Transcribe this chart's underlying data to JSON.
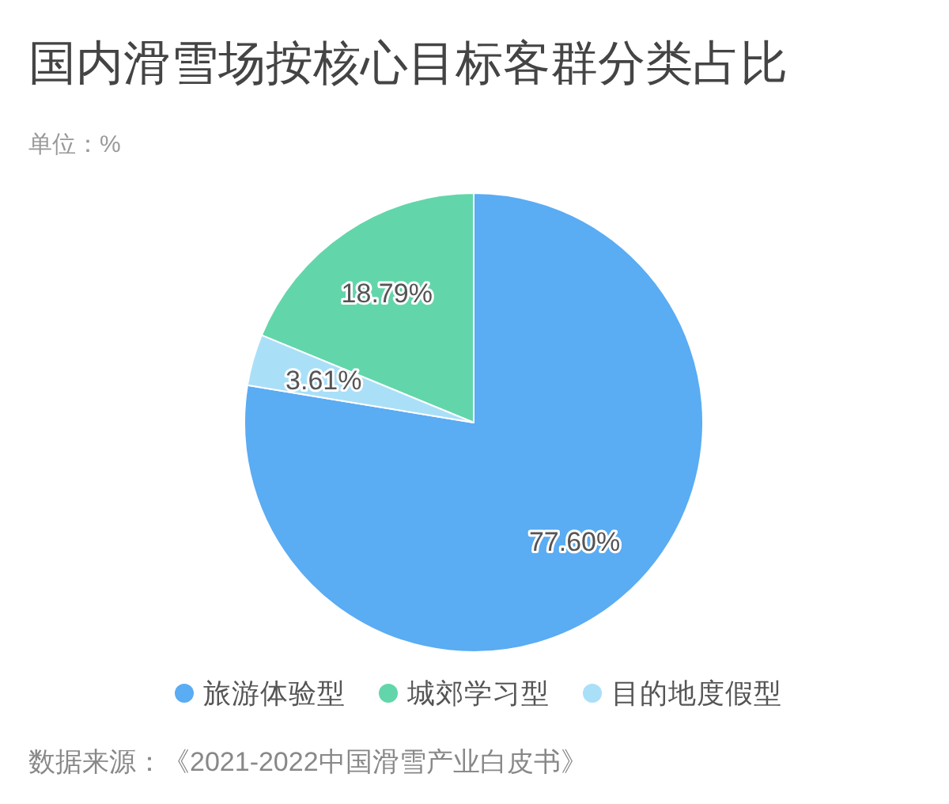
{
  "chart_data": {
    "type": "pie",
    "title": "国内滑雪场按核心目标客群分类占比",
    "subtitle": "单位：%",
    "categories": [
      "旅游体验型",
      "城郊学习型",
      "目的地度假型"
    ],
    "values": [
      77.6,
      18.79,
      3.61
    ],
    "colors": [
      "#5aacf3",
      "#62d6aa",
      "#aadff8"
    ],
    "value_labels": [
      "77.60%",
      "18.79%",
      "3.61%"
    ],
    "legend": "bottom",
    "annotations": [
      "数据来源：《2021-2022中国滑雪产业白皮书》"
    ]
  }
}
